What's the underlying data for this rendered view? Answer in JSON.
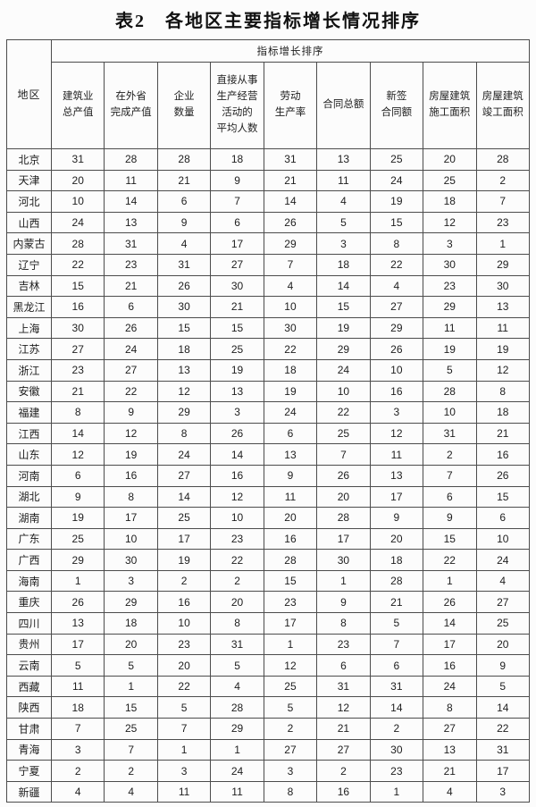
{
  "title": "表2　各地区主要指标增长情况排序",
  "colors": {
    "border": "#4c4c4c",
    "text": "#1e1e1e",
    "background": "#fcfcfc"
  },
  "table": {
    "region_header": "地区",
    "group_header": "指标增长排序",
    "columns": [
      "建筑业\n总产值",
      "在外省\n完成产值",
      "企业\n数量",
      "直接从事\n生产经营\n活动的\n平均人数",
      "劳动\n生产率",
      "合同总额",
      "新签\n合同额",
      "房屋建筑\n施工面积",
      "房屋建筑\n竣工面积"
    ],
    "rows": [
      {
        "region": "北京",
        "values": [
          31,
          28,
          28,
          18,
          31,
          13,
          25,
          20,
          28
        ]
      },
      {
        "region": "天津",
        "values": [
          20,
          11,
          21,
          9,
          21,
          11,
          24,
          25,
          2
        ]
      },
      {
        "region": "河北",
        "values": [
          10,
          14,
          6,
          7,
          14,
          4,
          19,
          18,
          7
        ]
      },
      {
        "region": "山西",
        "values": [
          24,
          13,
          9,
          6,
          26,
          5,
          15,
          12,
          23
        ]
      },
      {
        "region": "内蒙古",
        "values": [
          28,
          31,
          4,
          17,
          29,
          3,
          8,
          3,
          1
        ]
      },
      {
        "region": "辽宁",
        "values": [
          22,
          23,
          31,
          27,
          7,
          18,
          22,
          30,
          29
        ]
      },
      {
        "region": "吉林",
        "values": [
          15,
          21,
          26,
          30,
          4,
          14,
          4,
          23,
          30
        ]
      },
      {
        "region": "黑龙江",
        "values": [
          16,
          6,
          30,
          21,
          10,
          15,
          27,
          29,
          13
        ]
      },
      {
        "region": "上海",
        "values": [
          30,
          26,
          15,
          15,
          30,
          19,
          29,
          11,
          11
        ]
      },
      {
        "region": "江苏",
        "values": [
          27,
          24,
          18,
          25,
          22,
          29,
          26,
          19,
          19
        ]
      },
      {
        "region": "浙江",
        "values": [
          23,
          27,
          13,
          19,
          18,
          24,
          10,
          5,
          12
        ]
      },
      {
        "region": "安徽",
        "values": [
          21,
          22,
          12,
          13,
          19,
          10,
          16,
          28,
          8
        ]
      },
      {
        "region": "福建",
        "values": [
          8,
          9,
          29,
          3,
          24,
          22,
          3,
          10,
          18
        ]
      },
      {
        "region": "江西",
        "values": [
          14,
          12,
          8,
          26,
          6,
          25,
          12,
          31,
          21
        ]
      },
      {
        "region": "山东",
        "values": [
          12,
          19,
          24,
          14,
          13,
          7,
          11,
          2,
          16
        ]
      },
      {
        "region": "河南",
        "values": [
          6,
          16,
          27,
          16,
          9,
          26,
          13,
          7,
          26
        ]
      },
      {
        "region": "湖北",
        "values": [
          9,
          8,
          14,
          12,
          11,
          20,
          17,
          6,
          15
        ]
      },
      {
        "region": "湖南",
        "values": [
          19,
          17,
          25,
          10,
          20,
          28,
          9,
          9,
          6
        ]
      },
      {
        "region": "广东",
        "values": [
          25,
          10,
          17,
          23,
          16,
          17,
          20,
          15,
          10
        ]
      },
      {
        "region": "广西",
        "values": [
          29,
          30,
          19,
          22,
          28,
          30,
          18,
          22,
          24
        ]
      },
      {
        "region": "海南",
        "values": [
          1,
          3,
          2,
          2,
          15,
          1,
          28,
          1,
          4
        ]
      },
      {
        "region": "重庆",
        "values": [
          26,
          29,
          16,
          20,
          23,
          9,
          21,
          26,
          27
        ]
      },
      {
        "region": "四川",
        "values": [
          13,
          18,
          10,
          8,
          17,
          8,
          5,
          14,
          25
        ]
      },
      {
        "region": "贵州",
        "values": [
          17,
          20,
          23,
          31,
          1,
          23,
          7,
          17,
          20
        ]
      },
      {
        "region": "云南",
        "values": [
          5,
          5,
          20,
          5,
          12,
          6,
          6,
          16,
          9
        ]
      },
      {
        "region": "西藏",
        "values": [
          11,
          1,
          22,
          4,
          25,
          31,
          31,
          24,
          5
        ]
      },
      {
        "region": "陕西",
        "values": [
          18,
          15,
          5,
          28,
          5,
          12,
          14,
          8,
          14
        ]
      },
      {
        "region": "甘肃",
        "values": [
          7,
          25,
          7,
          29,
          2,
          21,
          2,
          27,
          22
        ]
      },
      {
        "region": "青海",
        "values": [
          3,
          7,
          1,
          1,
          27,
          27,
          30,
          13,
          31
        ]
      },
      {
        "region": "宁夏",
        "values": [
          2,
          2,
          3,
          24,
          3,
          2,
          23,
          21,
          17
        ]
      },
      {
        "region": "新疆",
        "values": [
          4,
          4,
          11,
          11,
          8,
          16,
          1,
          4,
          3
        ]
      }
    ]
  }
}
